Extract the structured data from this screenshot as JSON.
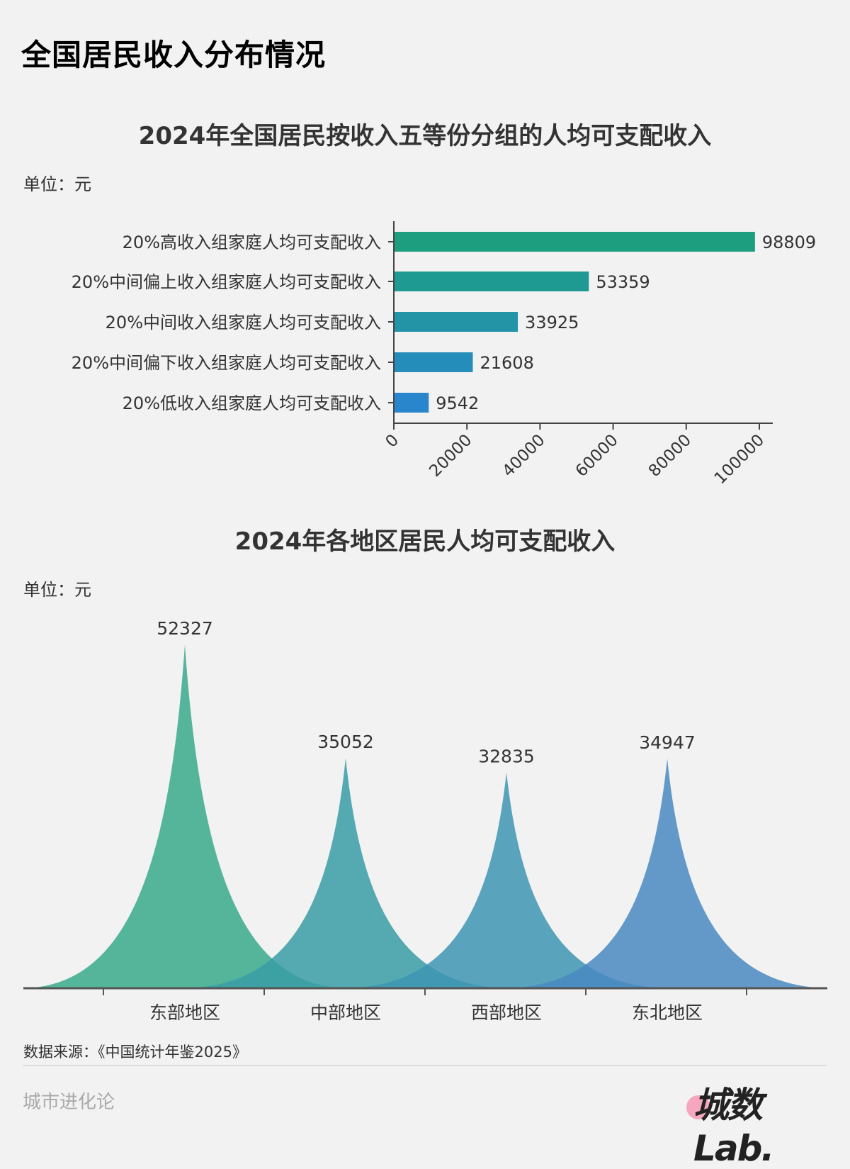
{
  "page": {
    "title": "全国居民收入分布情况",
    "source": "数据来源：《中国统计年鉴2025》",
    "footer_left": "城市进化论",
    "logo_text": "城数Lab."
  },
  "chart1": {
    "title": "2024年全国居民按收入五等份分组的人均可支配收入",
    "unit": "单位：元"
  },
  "chart2": {
    "title": "2024年各地区居民人均可支配收入",
    "unit": "单位：元"
  },
  "chart_data": [
    {
      "type": "bar",
      "orientation": "horizontal",
      "title": "2024年全国居民按收入五等份分组的人均可支配收入",
      "unit": "单位：元",
      "categories": [
        "20%高收入组家庭人均可支配收入",
        "20%中间偏上收入组家庭人均可支配收入",
        "20%中间收入组家庭人均可支配收入",
        "20%中间偏下收入组家庭人均可支配收入",
        "20%低收入组家庭人均可支配收入"
      ],
      "values": [
        98809,
        53359,
        33925,
        21608,
        9542
      ],
      "colors": [
        "#1d9e7e",
        "#1f9a93",
        "#2294a6",
        "#258db9",
        "#2a86cc"
      ],
      "xlim": [
        0,
        103000
      ],
      "xticks": [
        0,
        20000,
        40000,
        60000,
        80000,
        100000
      ],
      "xtick_labels": [
        "0",
        "20000",
        "40000",
        "60000",
        "80000",
        "100000"
      ],
      "data_labels": true,
      "grid": false
    },
    {
      "type": "area",
      "style": "spike-peaks",
      "title": "2024年各地区居民人均可支配收入",
      "unit": "单位：元",
      "categories": [
        "东部地区",
        "中部地区",
        "西部地区",
        "东北地区"
      ],
      "values": [
        52327,
        35052,
        32835,
        34947
      ],
      "value_labels": [
        "52327",
        "35052",
        "32835",
        "34947"
      ],
      "colors": [
        "#3aaa8c",
        "#3a9ea6",
        "#3e95b3",
        "#4a89c2"
      ],
      "opacity": 0.85,
      "grid": false
    }
  ]
}
